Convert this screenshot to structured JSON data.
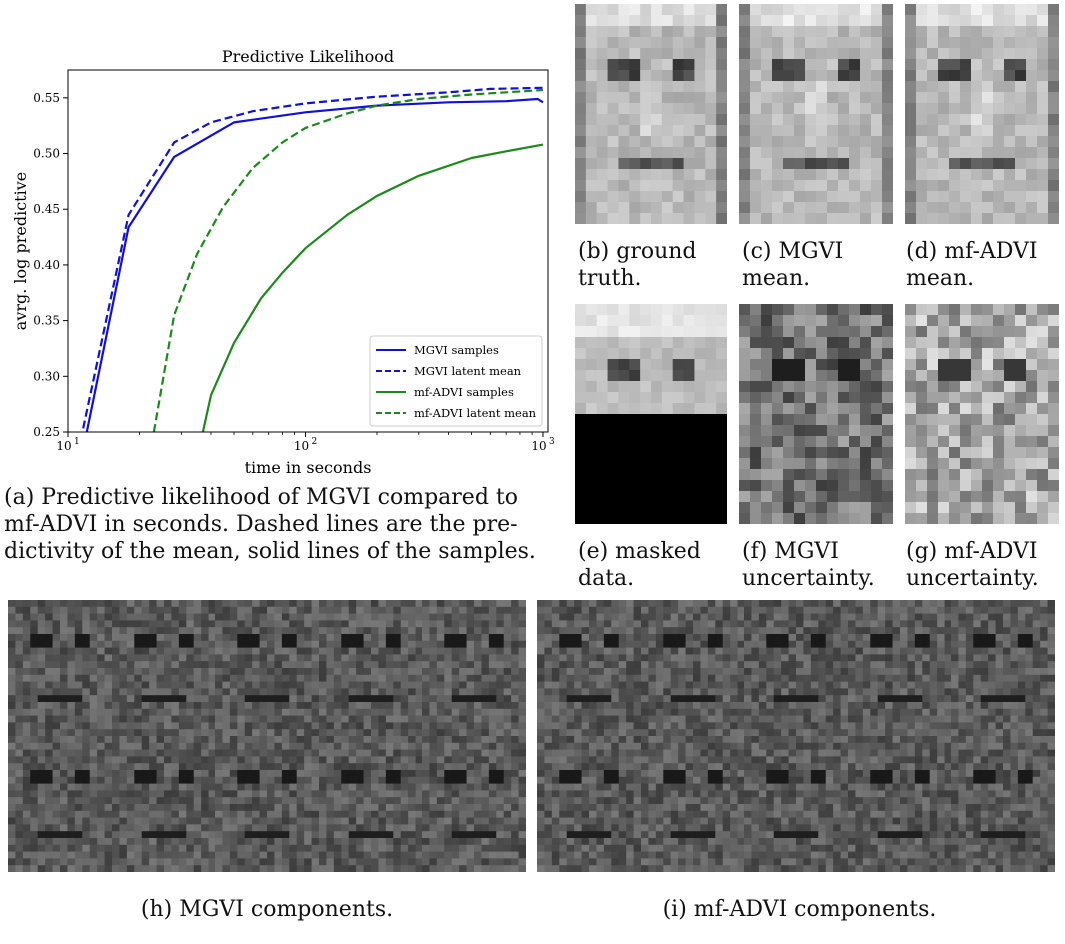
{
  "chart_data": {
    "type": "line",
    "title": "Predictive Likelihood",
    "xlabel": "time in seconds",
    "ylabel": "avrg. log predictive",
    "xscale": "log",
    "xlim": [
      10,
      1050
    ],
    "ylim": [
      0.25,
      0.575
    ],
    "x_ticks": [
      {
        "v": 10,
        "label": "10"
      },
      {
        "v": 100,
        "label": "10"
      },
      {
        "v": 1000,
        "label": "10"
      }
    ],
    "x_tick_exponents": [
      "1",
      "2",
      "3"
    ],
    "y_ticks": [
      0.25,
      0.3,
      0.35,
      0.4,
      0.45,
      0.5,
      0.55
    ],
    "y_tick_labels": [
      "0.25",
      "0.30",
      "0.35",
      "0.40",
      "0.45",
      "0.50",
      "0.55"
    ],
    "grid": false,
    "legend_position": "bottom-right",
    "series": [
      {
        "name": "MGVI samples",
        "color": "#1010d8",
        "dash": "solid",
        "x": [
          10,
          12,
          18,
          28,
          50,
          100,
          200,
          400,
          700,
          950,
          1000
        ],
        "y": [
          0.17,
          0.25,
          0.434,
          0.497,
          0.528,
          0.537,
          0.543,
          0.546,
          0.547,
          0.549,
          0.546
        ]
      },
      {
        "name": "MGVI latent mean",
        "color": "#1010d8",
        "dash": "dashed",
        "x": [
          10,
          11.5,
          18,
          28,
          40,
          60,
          100,
          200,
          400,
          600,
          1000
        ],
        "y": [
          0.19,
          0.25,
          0.445,
          0.51,
          0.528,
          0.538,
          0.545,
          0.551,
          0.555,
          0.558,
          0.559
        ]
      },
      {
        "name": "mf-ADVI samples",
        "color": "#1a8a1a",
        "dash": "solid",
        "x": [
          37,
          40,
          50,
          65,
          80,
          100,
          150,
          200,
          300,
          500,
          700,
          1000
        ],
        "y": [
          0.25,
          0.283,
          0.33,
          0.37,
          0.393,
          0.415,
          0.445,
          0.462,
          0.48,
          0.496,
          0.502,
          0.508
        ]
      },
      {
        "name": "mf-ADVI latent mean",
        "color": "#1a8a1a",
        "dash": "dashed",
        "x": [
          23,
          28,
          35,
          45,
          60,
          80,
          100,
          150,
          200,
          300,
          500,
          1000
        ],
        "y": [
          0.25,
          0.355,
          0.41,
          0.452,
          0.487,
          0.51,
          0.523,
          0.536,
          0.543,
          0.549,
          0.553,
          0.557
        ]
      }
    ]
  },
  "captions": {
    "a": "(a) Predictive likelihood of MGVI compared to mf-ADVI in seconds. Dashed lines are the predictivity of the mean, solid lines of the samples.",
    "a_line1": "(a) Predictive likelihood of MGVI compared to",
    "a_line2": "mf-ADVI in seconds.  Dashed lines are the pre-",
    "a_line3": "dictivity of the mean, solid lines of the samples.",
    "b1": "(b) ground",
    "b2": "truth.",
    "c1": "(c) MGVI",
    "c2": "mean.",
    "d1": "(d) mf-ADVI",
    "d2": "mean.",
    "e1": "(e) masked",
    "e2": "data.",
    "f1": "(f) MGVI",
    "f2": "uncertainty.",
    "g1": "(g) mf-ADVI",
    "g2": "uncertainty.",
    "h": "(h) MGVI components.",
    "i": "(i) mf-ADVI components."
  }
}
